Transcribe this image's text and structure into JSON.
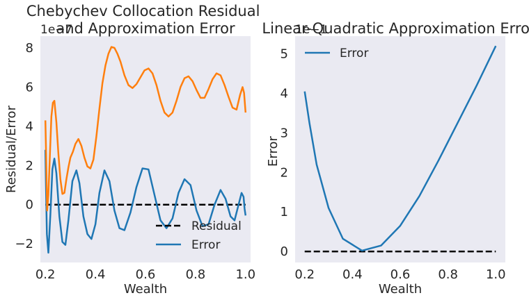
{
  "chart_data": [
    {
      "type": "line",
      "title": "Chebychev Collocation Residual\nand Approximation Error",
      "xlabel": "Wealth",
      "ylabel": "Residual/Error",
      "y_offset_label": "1e−7",
      "xlim": [
        0.18,
        1.02
      ],
      "ylim": [
        -2.95,
        8.6
      ],
      "xticks": [
        0.2,
        0.4,
        0.6,
        0.8,
        1.0
      ],
      "xtick_labels": [
        "0.2",
        "0.4",
        "0.6",
        "0.8",
        "1.0"
      ],
      "yticks": [
        -2,
        0,
        2,
        4,
        6,
        8
      ],
      "ytick_labels": [
        "−2",
        "0",
        "2",
        "4",
        "6",
        "8"
      ],
      "grid": false,
      "legend": "lower-right",
      "legend_entries": [
        "Residual",
        "Error"
      ],
      "series": [
        {
          "name": "Residual",
          "color": "#000000",
          "style": "dashed",
          "x": [
            0.2,
            1.0
          ],
          "y": [
            0.0,
            0.0
          ]
        },
        {
          "name": "Error",
          "color": "#1f77b4",
          "style": "solid",
          "x": [
            0.2,
            0.202,
            0.206,
            0.212,
            0.22,
            0.228,
            0.236,
            0.244,
            0.256,
            0.268,
            0.28,
            0.292,
            0.308,
            0.324,
            0.336,
            0.352,
            0.368,
            0.384,
            0.4,
            0.416,
            0.436,
            0.456,
            0.476,
            0.496,
            0.516,
            0.54,
            0.564,
            0.588,
            0.612,
            0.636,
            0.66,
            0.684,
            0.708,
            0.732,
            0.756,
            0.78,
            0.804,
            0.828,
            0.852,
            0.876,
            0.9,
            0.92,
            0.94,
            0.956,
            0.972,
            0.984,
            0.992,
            0.996,
            1.0
          ],
          "y": [
            2.8,
            1.2,
            -1.5,
            -2.45,
            -0.5,
            1.8,
            2.35,
            1.6,
            -0.6,
            -1.9,
            -2.05,
            -0.8,
            1.2,
            1.75,
            1.1,
            -0.6,
            -1.5,
            -1.75,
            -1.0,
            0.6,
            1.75,
            1.2,
            -0.3,
            -1.2,
            -1.3,
            -0.4,
            0.9,
            1.85,
            1.8,
            0.5,
            -0.8,
            -1.2,
            -0.7,
            0.6,
            1.3,
            1.0,
            -0.3,
            -1.1,
            -1.0,
            0.0,
            0.75,
            0.3,
            -0.6,
            -0.8,
            0.0,
            0.6,
            0.4,
            -0.2,
            -0.55
          ]
        },
        {
          "name": "",
          "color": "#ff7f0e",
          "style": "solid",
          "x": [
            0.2,
            0.203,
            0.207,
            0.212,
            0.218,
            0.224,
            0.23,
            0.236,
            0.244,
            0.252,
            0.26,
            0.268,
            0.276,
            0.284,
            0.292,
            0.3,
            0.31,
            0.32,
            0.332,
            0.344,
            0.356,
            0.368,
            0.38,
            0.392,
            0.404,
            0.416,
            0.428,
            0.44,
            0.452,
            0.464,
            0.476,
            0.488,
            0.5,
            0.516,
            0.532,
            0.548,
            0.564,
            0.58,
            0.596,
            0.612,
            0.628,
            0.644,
            0.66,
            0.676,
            0.692,
            0.708,
            0.724,
            0.74,
            0.756,
            0.772,
            0.788,
            0.804,
            0.82,
            0.836,
            0.852,
            0.868,
            0.884,
            0.9,
            0.916,
            0.932,
            0.948,
            0.964,
            0.978,
            0.988,
            0.994,
            1.0
          ],
          "y": [
            4.3,
            2.5,
            -0.3,
            0.5,
            2.5,
            4.5,
            5.2,
            5.3,
            4.2,
            2.6,
            1.3,
            0.55,
            0.6,
            1.3,
            1.9,
            2.4,
            2.7,
            3.1,
            3.35,
            3.0,
            2.4,
            1.95,
            1.85,
            2.3,
            3.5,
            4.9,
            6.2,
            7.1,
            7.7,
            8.05,
            8.0,
            7.7,
            7.3,
            6.6,
            6.1,
            5.95,
            6.15,
            6.5,
            6.85,
            6.95,
            6.7,
            6.1,
            5.3,
            4.7,
            4.5,
            4.7,
            5.3,
            6.0,
            6.45,
            6.55,
            6.3,
            5.85,
            5.45,
            5.45,
            5.9,
            6.4,
            6.7,
            6.6,
            6.1,
            5.5,
            4.95,
            4.85,
            5.6,
            6.0,
            5.7,
            4.7
          ]
        }
      ]
    },
    {
      "type": "line",
      "title": "Linear-Quadratic Approximation Error",
      "xlabel": "Wealth",
      "ylabel": "Error",
      "y_offset_label": "1e−1",
      "xlim": [
        0.16,
        1.04
      ],
      "ylim": [
        -0.28,
        5.45
      ],
      "xticks": [
        0.2,
        0.4,
        0.6,
        0.8,
        1.0
      ],
      "xtick_labels": [
        "0.2",
        "0.4",
        "0.6",
        "0.8",
        "1.0"
      ],
      "yticks": [
        0,
        1,
        2,
        3,
        4,
        5
      ],
      "ytick_labels": [
        "0",
        "1",
        "2",
        "3",
        "4",
        "5"
      ],
      "grid": false,
      "legend": "top-left",
      "legend_entries": [
        "Error"
      ],
      "series": [
        {
          "name": "",
          "color": "#000000",
          "style": "dashed",
          "x": [
            0.2,
            1.0
          ],
          "y": [
            0.0,
            0.0
          ]
        },
        {
          "name": "Error",
          "color": "#1f77b4",
          "style": "solid",
          "x": [
            0.2,
            0.22,
            0.25,
            0.3,
            0.36,
            0.44,
            0.52,
            0.6,
            0.68,
            0.76,
            0.84,
            0.92,
            1.0
          ],
          "y": [
            4.05,
            3.25,
            2.2,
            1.1,
            0.32,
            0.02,
            0.15,
            0.65,
            1.4,
            2.3,
            3.25,
            4.2,
            5.2
          ]
        }
      ]
    }
  ]
}
